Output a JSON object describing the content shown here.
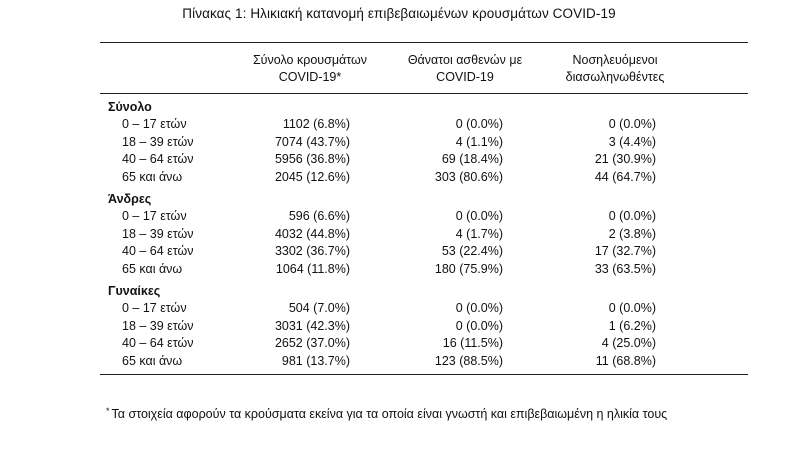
{
  "title": "Πίνακας 1: Ηλικιακή κατανομή επιβεβαιωμένων κρουσμάτων COVID-19",
  "headers": {
    "col1_line1": "Σύνολο κρουσμάτων",
    "col1_line2": "COVID-19*",
    "col2_line1": "Θάνατοι ασθενών με",
    "col2_line2": "COVID-19",
    "col3_line1": "Νοσηλευόμενοι",
    "col3_line2": "διασωληνωθέντες"
  },
  "groups": [
    {
      "label": "Σύνολο",
      "rows": [
        {
          "age": "0 – 17 ετών",
          "cases": "1102 (6.8%)",
          "deaths": "0 (0.0%)",
          "intubated": "0 (0.0%)"
        },
        {
          "age": "18 – 39 ετών",
          "cases": "7074 (43.7%)",
          "deaths": "4 (1.1%)",
          "intubated": "3 (4.4%)"
        },
        {
          "age": "40 – 64 ετών",
          "cases": "5956 (36.8%)",
          "deaths": "69 (18.4%)",
          "intubated": "21 (30.9%)"
        },
        {
          "age": "65 και άνω",
          "cases": "2045 (12.6%)",
          "deaths": "303 (80.6%)",
          "intubated": "44 (64.7%)"
        }
      ]
    },
    {
      "label": "Άνδρες",
      "rows": [
        {
          "age": "0 – 17 ετών",
          "cases": "596 (6.6%)",
          "deaths": "0 (0.0%)",
          "intubated": "0 (0.0%)"
        },
        {
          "age": "18 – 39 ετών",
          "cases": "4032 (44.8%)",
          "deaths": "4 (1.7%)",
          "intubated": "2 (3.8%)"
        },
        {
          "age": "40 – 64 ετών",
          "cases": "3302 (36.7%)",
          "deaths": "53 (22.4%)",
          "intubated": "17 (32.7%)"
        },
        {
          "age": "65 και άνω",
          "cases": "1064 (11.8%)",
          "deaths": "180 (75.9%)",
          "intubated": "33 (63.5%)"
        }
      ]
    },
    {
      "label": "Γυναίκες",
      "rows": [
        {
          "age": "0 – 17 ετών",
          "cases": "504 (7.0%)",
          "deaths": "0 (0.0%)",
          "intubated": "0 (0.0%)"
        },
        {
          "age": "18 – 39 ετών",
          "cases": "3031 (42.3%)",
          "deaths": "0 (0.0%)",
          "intubated": "1 (6.2%)"
        },
        {
          "age": "40 – 64 ετών",
          "cases": "2652 (37.0%)",
          "deaths": "16 (11.5%)",
          "intubated": "4 (25.0%)"
        },
        {
          "age": "65 και άνω",
          "cases": "981 (13.7%)",
          "deaths": "123 (88.5%)",
          "intubated": "11 (68.8%)"
        }
      ]
    }
  ],
  "footnote": {
    "marker": "*",
    "text": "Τα στοιχεία αφορούν τα κρούσματα εκείνα για τα οποία είναι γνωστή και επιβεβαιωμένη η ηλικία τους"
  }
}
